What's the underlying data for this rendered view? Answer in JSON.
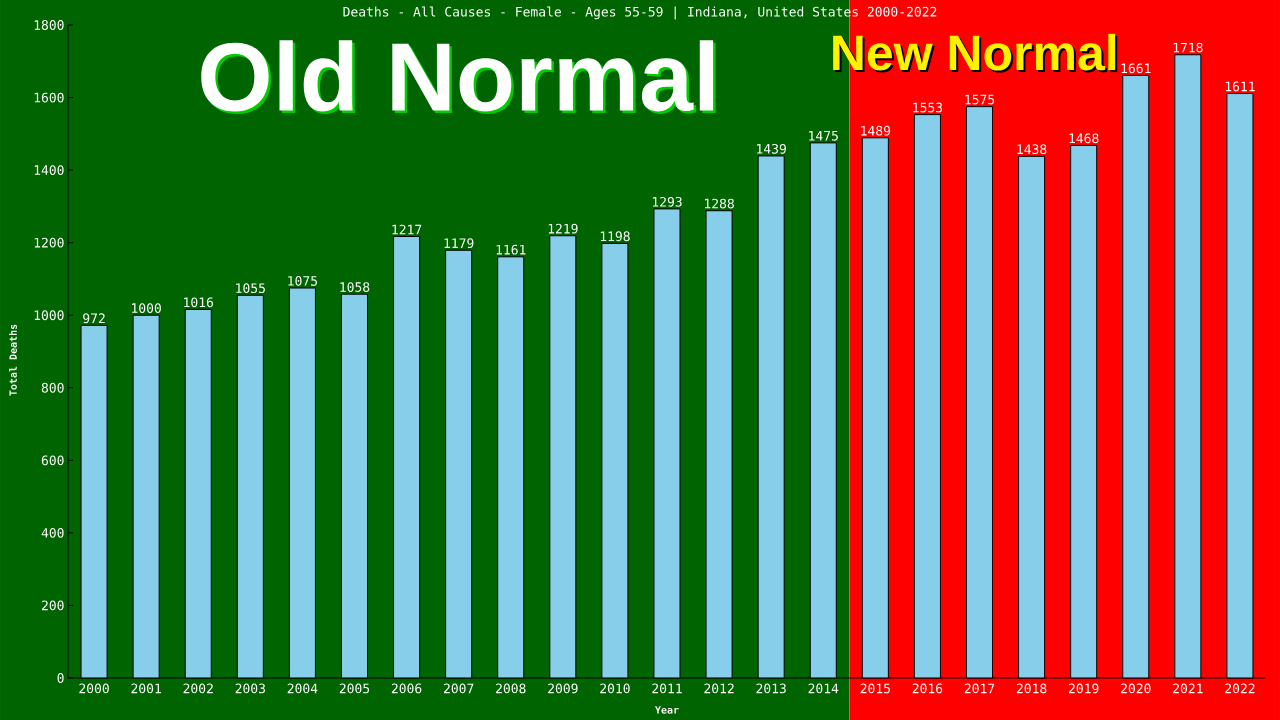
{
  "chart_data": {
    "type": "bar",
    "title": "Deaths - All Causes - Female - Ages 55-59 | Indiana, United States 2000-2022",
    "xlabel": "Year",
    "ylabel": "Total Deaths",
    "categories": [
      "2000",
      "2001",
      "2002",
      "2003",
      "2004",
      "2005",
      "2006",
      "2007",
      "2008",
      "2009",
      "2010",
      "2011",
      "2012",
      "2013",
      "2014",
      "2015",
      "2016",
      "2017",
      "2018",
      "2019",
      "2020",
      "2021",
      "2022"
    ],
    "values": [
      972,
      1000,
      1016,
      1055,
      1075,
      1058,
      1217,
      1179,
      1161,
      1219,
      1198,
      1293,
      1288,
      1439,
      1475,
      1489,
      1553,
      1575,
      1438,
      1468,
      1661,
      1718,
      1611
    ],
    "color": "#87ceeb",
    "data_labels": true,
    "grid": false,
    "ylim": [
      0,
      1800
    ],
    "yticks": [
      0,
      200,
      400,
      600,
      800,
      1000,
      1200,
      1400,
      1600,
      1800
    ],
    "bands": [
      {
        "axis": "x",
        "from": "2000",
        "to": "2014",
        "label": "Old Normal",
        "color": "#006400"
      },
      {
        "axis": "x",
        "from": "2015",
        "to": "2022",
        "label": "New Normal",
        "color": "#ff0000"
      }
    ]
  }
}
